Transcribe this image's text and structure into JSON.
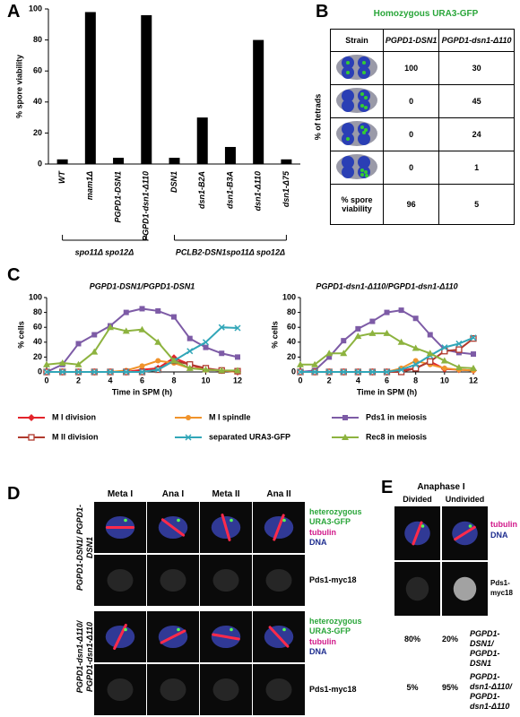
{
  "panel_labels": [
    "A",
    "B",
    "C",
    "D",
    "E"
  ],
  "chart_data": [
    {
      "type": "bar",
      "ylabel": "% spore viability",
      "categories": [
        "WT",
        "mam1Δ",
        "PGPD1-DSN1",
        "PGPD1-dsn1-Δ110",
        "DSN1",
        "dsn1-B2A",
        "dsn1-B3A",
        "dsn1-Δ110",
        "dsn1-Δ75"
      ],
      "values": [
        3,
        98,
        4,
        96,
        4,
        30,
        11,
        80,
        3
      ],
      "color": "#000000",
      "ylim": [
        0,
        100
      ],
      "yticks": [
        0,
        20,
        40,
        60,
        80,
        100
      ],
      "group_labels": [
        "spo11Δ spo12Δ",
        "PCLB2-DSN1spo11Δ spo12Δ"
      ]
    },
    {
      "type": "line",
      "title": "PGPD1-DSN1/PGPD1-DSN1",
      "xlabel": "Time in SPM (h)",
      "ylabel": "% cells",
      "x": [
        0,
        1,
        2,
        3,
        4,
        5,
        6,
        7,
        8,
        9,
        10,
        11,
        12
      ],
      "xlim": [
        0,
        12
      ],
      "xticks": [
        0,
        2,
        4,
        6,
        8,
        10,
        12
      ],
      "ylim": [
        0,
        100
      ],
      "yticks": [
        0,
        20,
        40,
        60,
        80,
        100
      ],
      "series": [
        {
          "name": "M I division",
          "color": "#e3242b",
          "marker": "diamond",
          "values": [
            0,
            0,
            0,
            0,
            0,
            0,
            3,
            5,
            19,
            10,
            3,
            2,
            0
          ]
        },
        {
          "name": "M I spindle",
          "color": "#f0932b",
          "marker": "circle",
          "values": [
            0,
            0,
            0,
            0,
            0,
            2,
            8,
            15,
            12,
            5,
            4,
            2,
            0
          ]
        },
        {
          "name": "Pds1 in meiosis",
          "color": "#7d5ba6",
          "marker": "square",
          "values": [
            0,
            10,
            38,
            50,
            62,
            80,
            85,
            82,
            74,
            45,
            33,
            25,
            20
          ]
        },
        {
          "name": "M II division",
          "color": "#b03a2e",
          "marker": "square-open",
          "values": [
            0,
            0,
            0,
            0,
            0,
            0,
            0,
            3,
            15,
            10,
            5,
            2,
            1
          ]
        },
        {
          "name": "separated URA3-GFP",
          "color": "#31a6b8",
          "marker": "x",
          "values": [
            0,
            0,
            0,
            0,
            0,
            0,
            0,
            3,
            15,
            28,
            40,
            60,
            59
          ]
        },
        {
          "name": "Rec8 in meiosis",
          "color": "#8db33f",
          "marker": "triangle",
          "values": [
            10,
            12,
            10,
            27,
            60,
            55,
            57,
            40,
            15,
            5,
            3,
            2,
            2
          ]
        }
      ]
    },
    {
      "type": "line",
      "title": "PGPD1-dsn1-Δ110/PGPD1-dsn1-Δ110",
      "xlabel": "Time in SPM (h)",
      "ylabel": "% cells",
      "x": [
        0,
        1,
        2,
        3,
        4,
        5,
        6,
        7,
        8,
        9,
        10,
        11,
        12
      ],
      "xlim": [
        0,
        12
      ],
      "xticks": [
        0,
        2,
        4,
        6,
        8,
        10,
        12
      ],
      "ylim": [
        0,
        100
      ],
      "yticks": [
        0,
        20,
        40,
        60,
        80,
        100
      ],
      "series": [
        {
          "name": "M I division",
          "color": "#e3242b",
          "marker": "diamond",
          "values": [
            0,
            0,
            0,
            0,
            0,
            0,
            0,
            2,
            5,
            14,
            4,
            3,
            2
          ]
        },
        {
          "name": "M I spindle",
          "color": "#f0932b",
          "marker": "circle",
          "values": [
            0,
            0,
            0,
            0,
            0,
            0,
            0,
            5,
            15,
            10,
            5,
            3,
            2
          ]
        },
        {
          "name": "Pds1 in meiosis",
          "color": "#7d5ba6",
          "marker": "square",
          "values": [
            0,
            2,
            20,
            42,
            58,
            68,
            80,
            83,
            72,
            50,
            30,
            26,
            24
          ]
        },
        {
          "name": "M II division",
          "color": "#b03a2e",
          "marker": "square-open",
          "values": [
            0,
            0,
            0,
            0,
            0,
            0,
            0,
            0,
            5,
            14,
            28,
            30,
            45
          ]
        },
        {
          "name": "separated URA3-GFP",
          "color": "#31a6b8",
          "marker": "x",
          "values": [
            0,
            0,
            0,
            0,
            0,
            0,
            0,
            3,
            10,
            22,
            33,
            38,
            46
          ]
        },
        {
          "name": "Rec8 in meiosis",
          "color": "#8db33f",
          "marker": "triangle",
          "values": [
            10,
            10,
            25,
            25,
            48,
            52,
            52,
            40,
            32,
            25,
            15,
            6,
            5
          ]
        }
      ]
    }
  ],
  "table_b": {
    "title": "Homozygous URA3-GFP",
    "side_label": "% of tetrads",
    "header": [
      "Strain",
      "PGPD1-DSN1",
      "PGPD1-dsn1-Δ110"
    ],
    "rows": [
      [
        100,
        30
      ],
      [
        0,
        45
      ],
      [
        0,
        24
      ],
      [
        0,
        1
      ]
    ],
    "footer": [
      "% spore viability",
      96,
      5
    ]
  },
  "panel_d": {
    "columns": [
      "Meta I",
      "Ana I",
      "Meta II",
      "Ana II"
    ],
    "rows": [
      {
        "genotype": "PGPD1-DSN1/ PGPD1-DSN1",
        "stain_labels": [
          "heterozygous URA3-GFP",
          "tubulin",
          "DNA"
        ],
        "pds1_label": "Pds1-myc18"
      },
      {
        "genotype": "PGPD1-dsn1-Δ110/ PGPD1-dsn1-Δ110",
        "stain_labels": [
          "heterozygous URA3-GFP",
          "tubulin",
          "DNA"
        ],
        "pds1_label": "Pds1-myc18"
      }
    ]
  },
  "panel_e": {
    "title": "Anaphase I",
    "columns": [
      "Divided",
      "Undivided"
    ],
    "stain_labels": [
      "tubulin",
      "DNA"
    ],
    "pds1_label": "Pds1-myc18",
    "results": [
      {
        "values": [
          "80%",
          "20%"
        ],
        "genotype": "PGPD1-DSN1/ PGPD1-DSN1"
      },
      {
        "values": [
          "5%",
          "95%"
        ],
        "genotype": "PGPD1-dsn1-Δ110/ PGPD1-dsn1-Δ110"
      }
    ]
  }
}
